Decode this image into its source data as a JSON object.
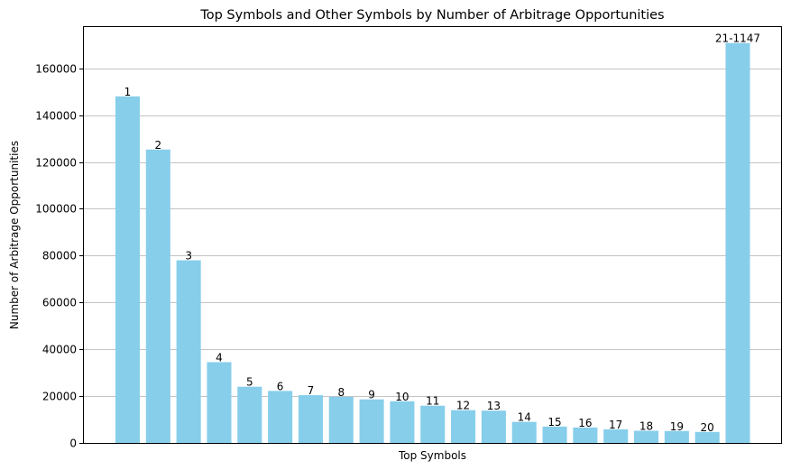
{
  "chart_data": {
    "type": "bar",
    "title": "Top Symbols and Other Symbols by Number of Arbitrage Opportunities",
    "xlabel": "Top Symbols",
    "ylabel": "Number of Arbitrage Opportunities",
    "categories": [
      "1",
      "2",
      "3",
      "4",
      "5",
      "6",
      "7",
      "8",
      "9",
      "10",
      "11",
      "12",
      "13",
      "14",
      "15",
      "16",
      "17",
      "18",
      "19",
      "20",
      "21-1147"
    ],
    "values": [
      148000,
      125300,
      78000,
      34500,
      24000,
      22200,
      20400,
      19700,
      18600,
      17800,
      15900,
      14000,
      13800,
      9000,
      7000,
      6600,
      5800,
      5200,
      5100,
      4700,
      170800
    ],
    "ylim": [
      0,
      178000
    ],
    "yticks": [
      0,
      20000,
      40000,
      60000,
      80000,
      100000,
      120000,
      140000,
      160000
    ],
    "grid": "y",
    "legend": "none",
    "colors": {
      "bar": "#87CEEB",
      "grid": "#c4c4c4",
      "text": "#000000"
    }
  }
}
